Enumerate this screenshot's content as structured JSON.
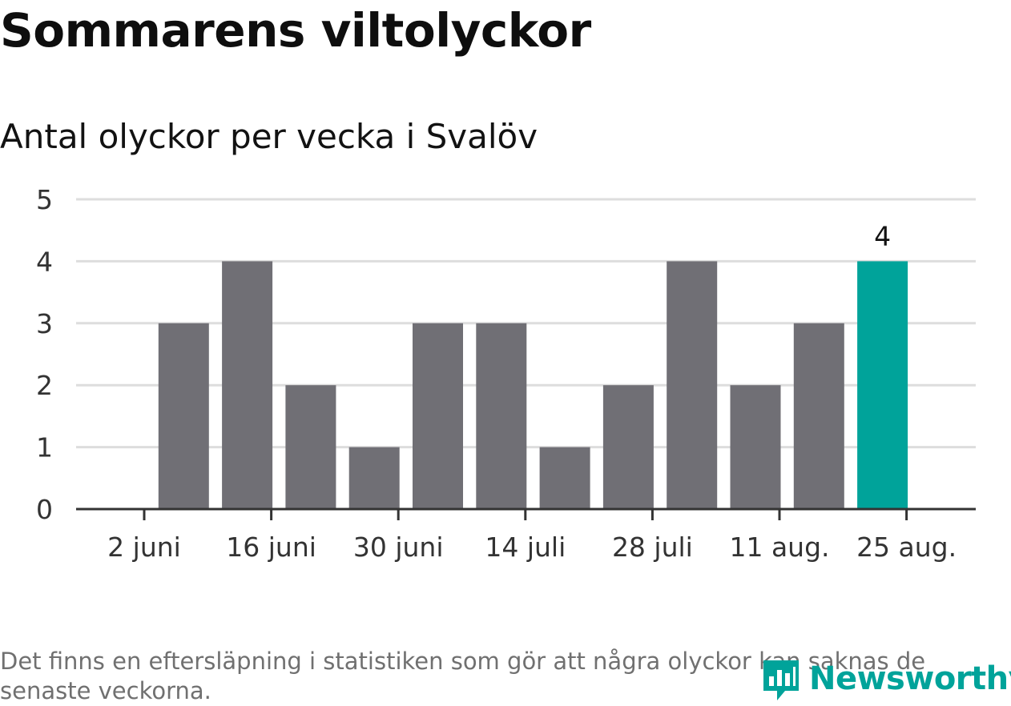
{
  "header": {
    "title": "Sommarens viltolyckor",
    "subtitle": "Antal olyckor per vecka i Svalöv"
  },
  "colors": {
    "bar": "#706f75",
    "highlight": "#00a39a",
    "grid": "#dddddd",
    "axis": "#333333"
  },
  "chart_data": {
    "type": "bar",
    "x": [
      "2 juni",
      "9 juni",
      "16 juni",
      "23 juni",
      "30 juni",
      "7 juli",
      "14 juli",
      "21 juli",
      "28 juli",
      "4 aug.",
      "11 aug.",
      "18 aug.",
      "25 aug."
    ],
    "values": [
      0,
      3,
      4,
      2,
      1,
      3,
      3,
      1,
      2,
      4,
      2,
      3,
      4
    ],
    "xtick_labels": [
      "2 juni",
      "16 juni",
      "30 juni",
      "14 juli",
      "28 juli",
      "11 aug.",
      "25 aug."
    ],
    "yticks": [
      0,
      1,
      2,
      3,
      4,
      5
    ],
    "ylim": [
      0,
      5
    ],
    "highlight_last": true,
    "data_labels": [
      {
        "index": 12,
        "text": "4"
      }
    ],
    "grid": true
  },
  "footnote": "Det finns en eftersläpning i statistiken som gör att några olyckor kan saknas de senaste veckorna.",
  "logo": {
    "text": "Newsworthy",
    "icon": "newsworthy-logo-icon"
  }
}
